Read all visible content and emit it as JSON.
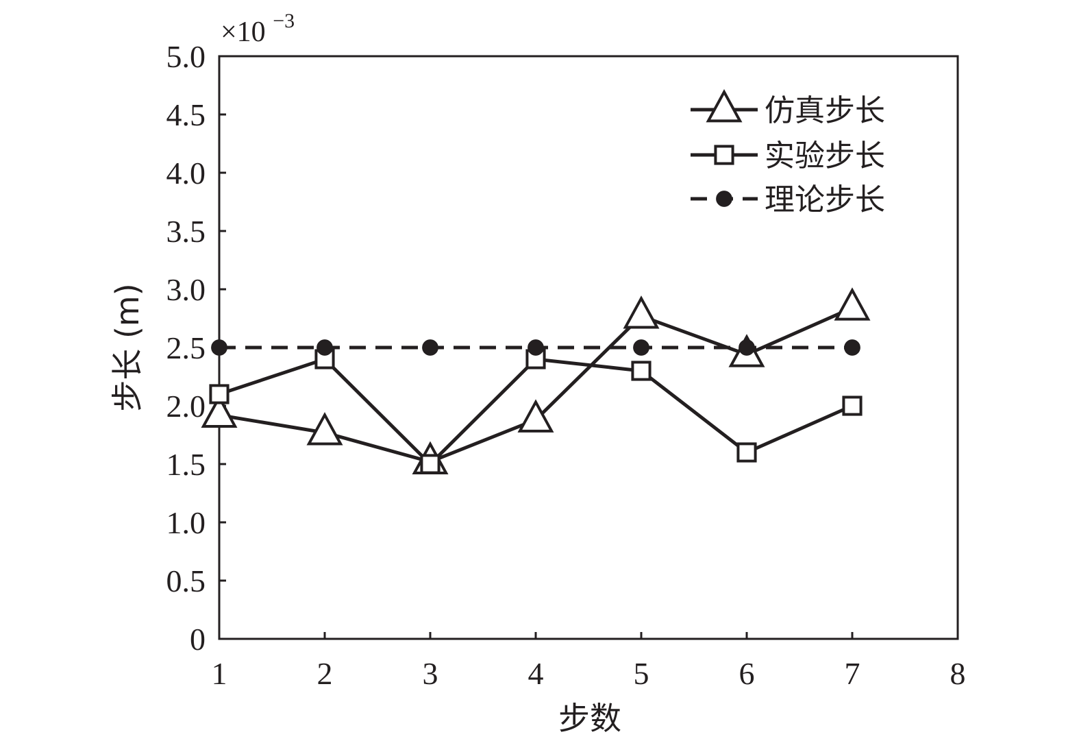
{
  "chart_data": {
    "type": "line",
    "xlabel": "步数",
    "ylabel": "步长 (m)",
    "y_multiplier": {
      "base": "×10",
      "exponent": "−3"
    },
    "xlim": [
      1,
      8
    ],
    "ylim": [
      0,
      5.0
    ],
    "x_ticks": [
      "1",
      "2",
      "3",
      "4",
      "5",
      "6",
      "7",
      "8"
    ],
    "y_ticks": [
      "0",
      "0.5",
      "1.0",
      "1.5",
      "2.0",
      "2.5",
      "3.0",
      "3.5",
      "4.0",
      "4.5",
      "5.0"
    ],
    "grid": false,
    "legend_position": "top-right",
    "x": [
      1,
      2,
      3,
      4,
      5,
      6,
      7
    ],
    "series": [
      {
        "name": "仿真步长",
        "marker": "triangle",
        "line": "solid",
        "values": [
          1.92,
          1.77,
          1.52,
          1.88,
          2.77,
          2.44,
          2.84
        ]
      },
      {
        "name": "实验步长",
        "marker": "square",
        "line": "solid",
        "values": [
          2.1,
          2.4,
          1.5,
          2.4,
          2.3,
          1.6,
          2.0
        ]
      },
      {
        "name": "理论步长",
        "marker": "circle",
        "line": "dashed",
        "values": [
          2.5,
          2.5,
          2.5,
          2.5,
          2.5,
          2.5,
          2.5
        ]
      }
    ],
    "colors": {
      "ink": "#231f20",
      "background": "#ffffff"
    }
  }
}
